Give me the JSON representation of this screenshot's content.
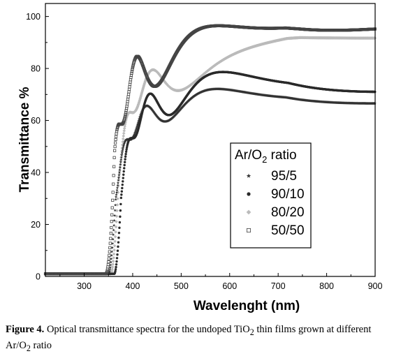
{
  "chart_data": {
    "type": "scatter",
    "title": "",
    "xlabel": "Wavelenght (nm)",
    "ylabel": "Transmittance %",
    "xlim": [
      220,
      900
    ],
    "ylim": [
      0,
      105
    ],
    "xticks": [
      300,
      400,
      500,
      600,
      700,
      800,
      900
    ],
    "yticks": [
      0,
      20,
      40,
      60,
      80,
      100
    ],
    "grid": false,
    "legend": {
      "title_main": "Ar/O",
      "title_sub": "2",
      "title_tail": " ratio",
      "placement": "center-right"
    },
    "series": [
      {
        "name": "95/5",
        "marker": "star",
        "color": "#333333",
        "edge": 350,
        "onset": 60,
        "base": 62,
        "amp_start": 3,
        "amp_end": 8,
        "period_start": 11,
        "period_end": 85,
        "phase": 0.0
      },
      {
        "name": "90/10",
        "marker": "filled-circle",
        "color": "#2a2a2a",
        "edge": 362,
        "onset": 56,
        "base": 66,
        "amp_start": 4,
        "amp_end": 11,
        "period_start": 12,
        "period_end": 90,
        "phase": 1.6
      },
      {
        "name": "80/20",
        "marker": "diamond",
        "color": "#bbbbbb",
        "edge": 355,
        "onset": 64,
        "base": 74,
        "amp_start": 4,
        "amp_end": 9,
        "period_start": 12,
        "period_end": 95,
        "phase": 0.8
      },
      {
        "name": "50/50",
        "marker": "open-square",
        "color": "#444444",
        "edge": 345,
        "onset": 70,
        "base": 80,
        "amp_start": 7,
        "amp_end": 14,
        "period_start": 11,
        "period_end": 100,
        "phase": 2.4
      }
    ]
  },
  "caption": {
    "label": "Figure 4.",
    "text_before": " Optical transmittance spectra for the undoped TiO",
    "sub1": "2",
    "text_middle": " thin films grown at different Ar/O",
    "sub2": "2",
    "text_after": " ratio"
  }
}
